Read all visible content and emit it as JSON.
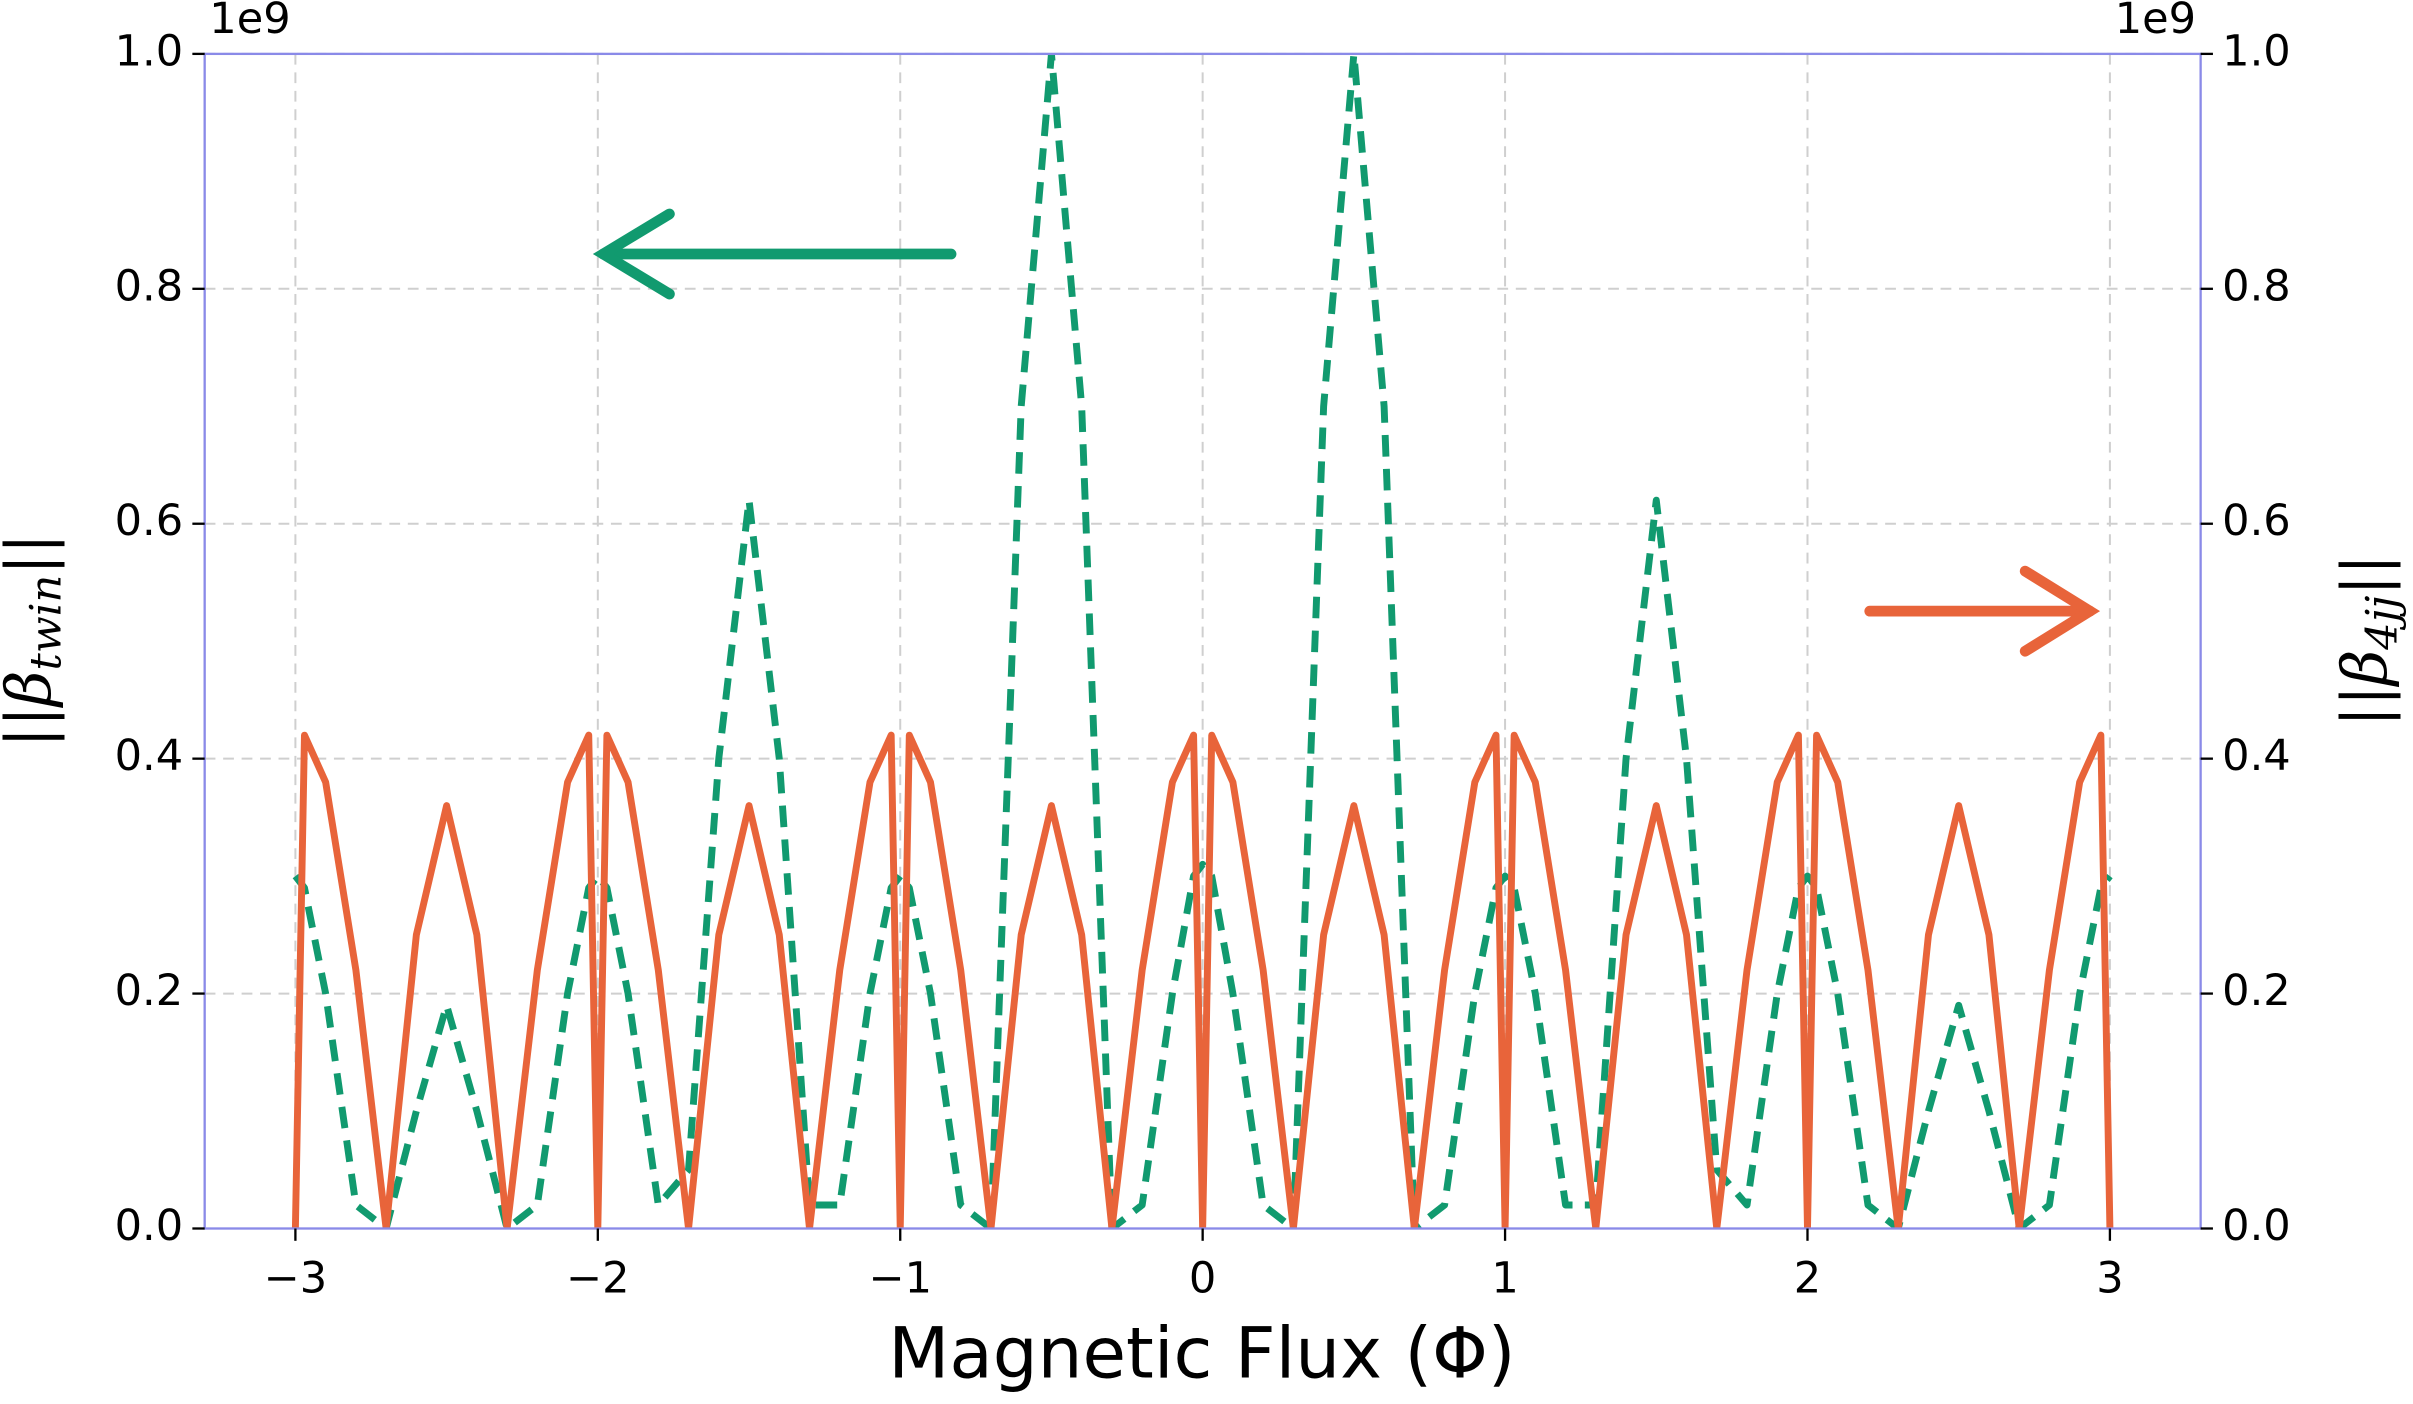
{
  "chart_data": {
    "type": "line",
    "xlabel": "Magnetic Flux (Φ)",
    "ylabel": [
      "||β",
      "twin",
      "||"
    ],
    "y2label": [
      "||β",
      "4jj",
      "||"
    ],
    "y_offset_label": "1e9",
    "y2_offset_label": "1e9",
    "xlim": [
      -3.3,
      3.3
    ],
    "xticks": [
      {
        "value": -3,
        "label": "−3"
      },
      {
        "value": -2,
        "label": "−2"
      },
      {
        "value": -1,
        "label": "−1"
      },
      0,
      1,
      2,
      3
    ],
    "ylim": [
      0,
      1
    ],
    "yticks": [
      {
        "value": 0,
        "label": "0.0"
      },
      {
        "value": 0.2,
        "label": "0.2"
      },
      {
        "value": 0.4,
        "label": "0.4"
      },
      {
        "value": 0.6,
        "label": "0.6"
      },
      {
        "value": 0.8,
        "label": "0.8"
      },
      {
        "value": 1,
        "label": "1.0"
      }
    ],
    "y2lim": [
      0,
      1
    ],
    "y2ticks": [
      {
        "value": 0,
        "label": "0.0"
      },
      {
        "value": 0.2,
        "label": "0.2"
      },
      {
        "value": 0.4,
        "label": "0.4"
      },
      {
        "value": 0.6,
        "label": "0.6"
      },
      {
        "value": 0.8,
        "label": "0.8"
      },
      {
        "value": 1,
        "label": "1.0"
      }
    ],
    "grid": true,
    "x": [
      -3,
      -2.97,
      -2.9,
      -2.8,
      -2.7,
      -2.6,
      -2.5,
      -2.4,
      -2.3,
      -2.2,
      -2.1,
      -2.03,
      -2,
      -1.97,
      -1.9,
      -1.8,
      -1.7,
      -1.6,
      -1.5,
      -1.4,
      -1.3,
      -1.2,
      -1.1,
      -1.03,
      -1,
      -0.97,
      -0.9,
      -0.8,
      -0.7,
      -0.6,
      -0.5,
      -0.4,
      -0.3,
      -0.2,
      -0.1,
      -0.03,
      0,
      0.03,
      0.1,
      0.2,
      0.3,
      0.4,
      0.5,
      0.6,
      0.7,
      0.8,
      0.9,
      0.97,
      1,
      1.03,
      1.1,
      1.2,
      1.3,
      1.4,
      1.5,
      1.6,
      1.7,
      1.8,
      1.9,
      1.97,
      2,
      2.03,
      2.1,
      2.2,
      2.3,
      2.4,
      2.5,
      2.6,
      2.7,
      2.8,
      2.9,
      2.97,
      3
    ],
    "series": [
      {
        "color": "#119a6f",
        "dash": true,
        "axis": "y",
        "values": [
          0.3,
          0.29,
          0.2,
          0.02,
          0,
          0.1,
          0.19,
          0.1,
          0,
          0.02,
          0.2,
          0.29,
          0.3,
          0.29,
          0.2,
          0.02,
          0.05,
          0.4,
          0.62,
          0.4,
          0.02,
          0.02,
          0.2,
          0.29,
          0.3,
          0.29,
          0.2,
          0.02,
          0,
          0.7,
          1.0,
          0.7,
          0,
          0.02,
          0.2,
          0.3,
          0.31,
          0.3,
          0.2,
          0.02,
          0,
          0.7,
          1.0,
          0.7,
          0,
          0.02,
          0.2,
          0.29,
          0.3,
          0.29,
          0.2,
          0.02,
          0.02,
          0.4,
          0.62,
          0.4,
          0.05,
          0.02,
          0.2,
          0.29,
          0.3,
          0.29,
          0.2,
          0.02,
          0,
          0.1,
          0.19,
          0.1,
          0,
          0.02,
          0.2,
          0.29,
          0.3
        ]
      },
      {
        "color": "#e8643a",
        "dash": false,
        "axis": "y2",
        "values": [
          0,
          0.42,
          0.38,
          0.22,
          0,
          0.25,
          0.36,
          0.25,
          0,
          0.22,
          0.38,
          0.42,
          0,
          0.42,
          0.38,
          0.22,
          0,
          0.25,
          0.36,
          0.25,
          0,
          0.22,
          0.38,
          0.42,
          0,
          0.42,
          0.38,
          0.22,
          0,
          0.25,
          0.36,
          0.25,
          0,
          0.22,
          0.38,
          0.42,
          0,
          0.42,
          0.38,
          0.22,
          0,
          0.25,
          0.36,
          0.25,
          0,
          0.22,
          0.38,
          0.42,
          0,
          0.42,
          0.38,
          0.22,
          0,
          0.25,
          0.36,
          0.25,
          0,
          0.22,
          0.38,
          0.42,
          0,
          0.42,
          0.38,
          0.22,
          0,
          0.25,
          0.36,
          0.25,
          0,
          0.22,
          0.38,
          0.42,
          0
        ]
      }
    ]
  }
}
